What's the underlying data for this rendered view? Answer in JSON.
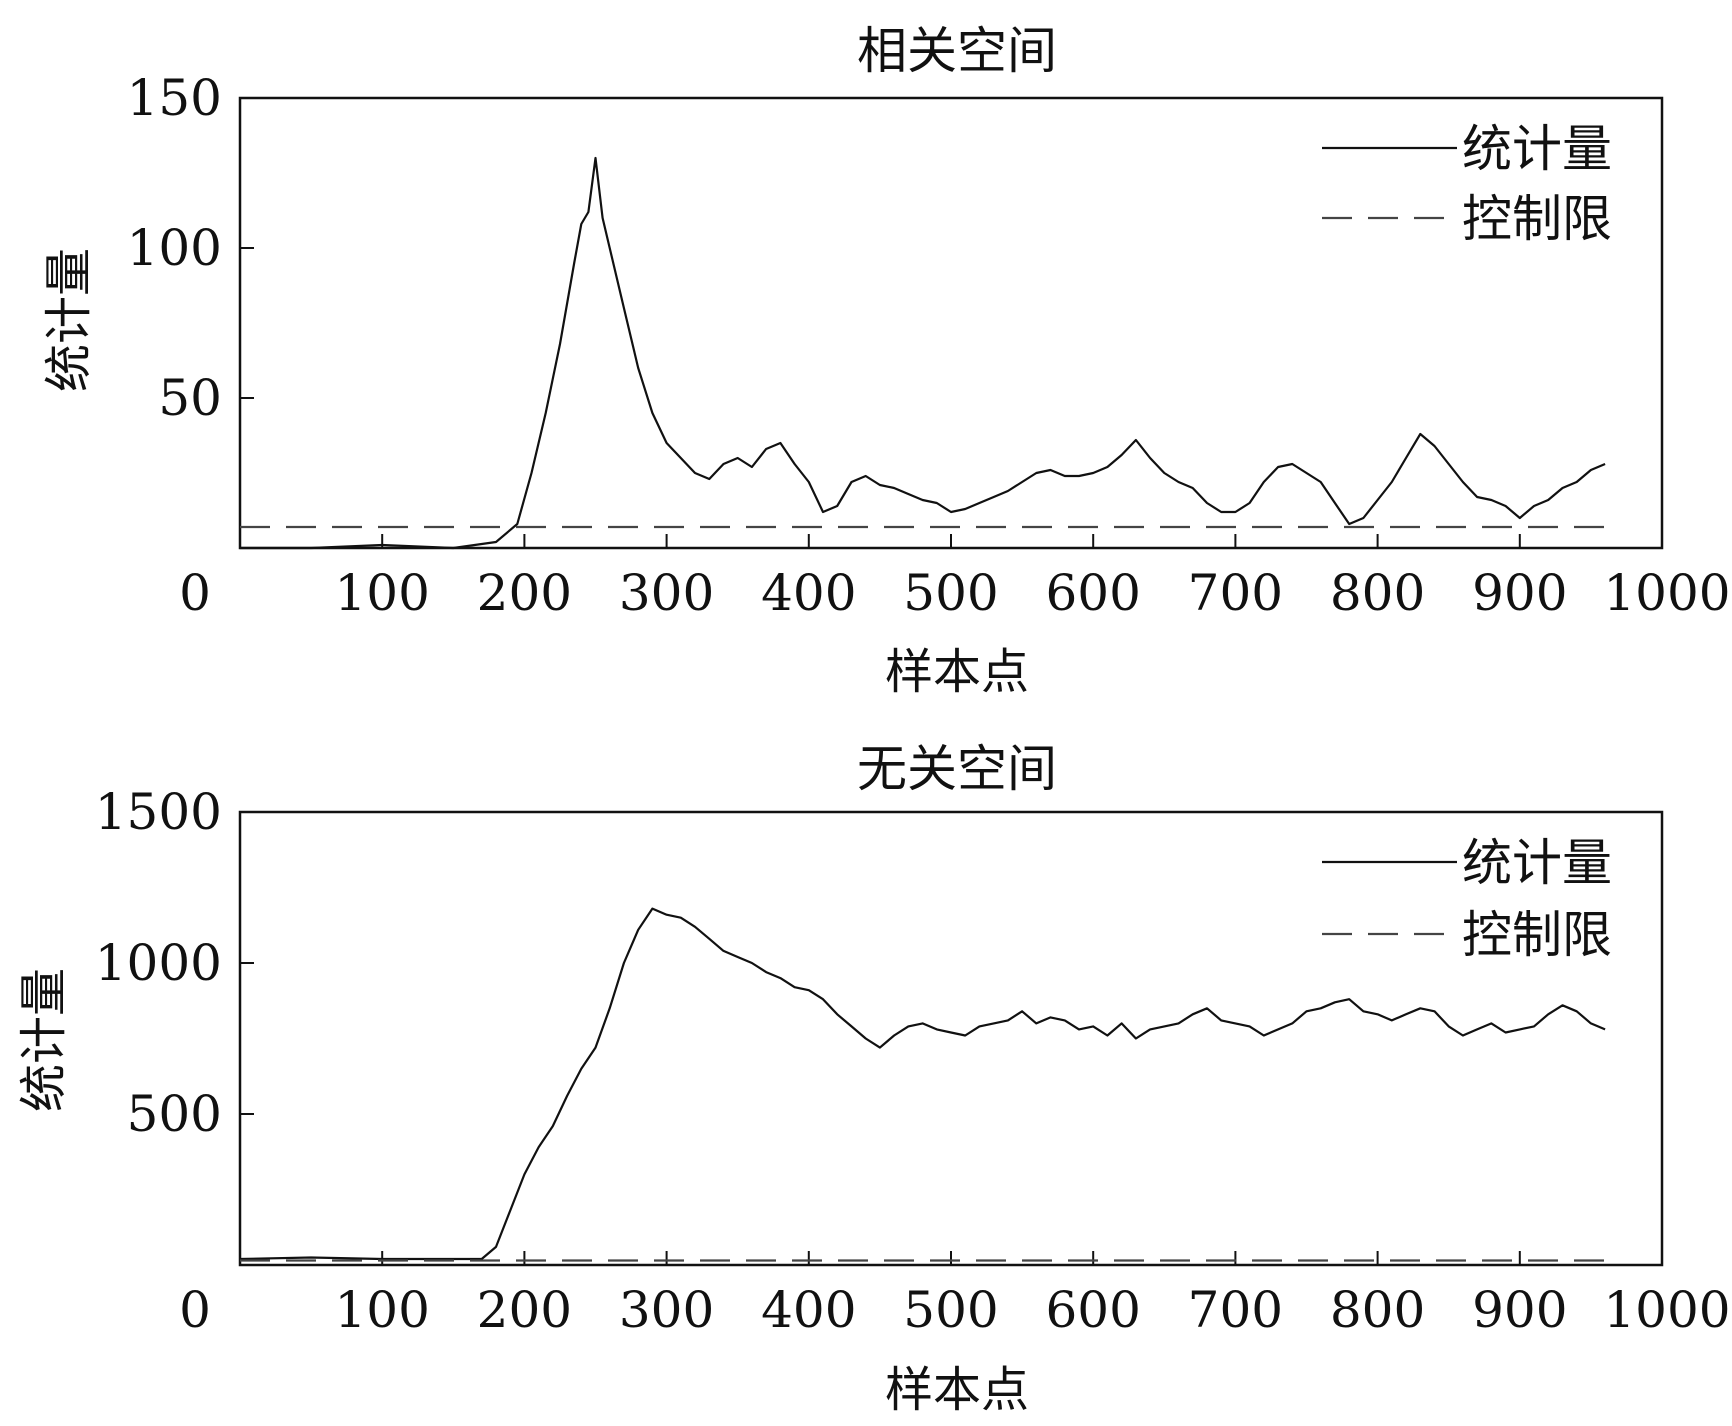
{
  "chart_data": [
    {
      "type": "line",
      "title": "相关空间",
      "xlabel": "样本点",
      "ylabel": "统计量",
      "xlim": [
        0,
        1000
      ],
      "ylim": [
        0,
        150
      ],
      "xticks": [
        "0",
        "100",
        "200",
        "300",
        "400",
        "500",
        "600",
        "700",
        "800",
        "900",
        "1000"
      ],
      "yticks": [
        "50",
        "100",
        "150"
      ],
      "ytick_values": [
        50,
        100,
        150
      ],
      "grid": false,
      "legend_position": "top-right",
      "series": [
        {
          "name": "统计量",
          "style": "solid",
          "x": [
            0,
            50,
            100,
            150,
            180,
            195,
            205,
            215,
            225,
            235,
            240,
            245,
            250,
            255,
            260,
            270,
            280,
            290,
            300,
            310,
            320,
            330,
            340,
            350,
            360,
            370,
            380,
            390,
            400,
            410,
            420,
            430,
            440,
            450,
            460,
            470,
            480,
            490,
            500,
            510,
            520,
            530,
            540,
            550,
            560,
            570,
            580,
            590,
            600,
            610,
            620,
            630,
            640,
            650,
            660,
            670,
            680,
            690,
            700,
            710,
            720,
            730,
            740,
            750,
            760,
            770,
            780,
            790,
            800,
            810,
            820,
            830,
            840,
            850,
            860,
            870,
            880,
            890,
            900,
            910,
            920,
            930,
            940,
            950,
            960
          ],
          "values": [
            0,
            0,
            1,
            0,
            2,
            8,
            25,
            45,
            68,
            95,
            108,
            112,
            130,
            110,
            100,
            80,
            60,
            45,
            35,
            30,
            25,
            23,
            28,
            30,
            27,
            33,
            35,
            28,
            22,
            12,
            14,
            22,
            24,
            21,
            20,
            18,
            16,
            15,
            12,
            13,
            15,
            17,
            19,
            22,
            25,
            26,
            24,
            24,
            25,
            27,
            31,
            36,
            30,
            25,
            22,
            20,
            15,
            12,
            12,
            15,
            22,
            27,
            28,
            25,
            22,
            15,
            8,
            10,
            16,
            22,
            30,
            38,
            34,
            28,
            22,
            17,
            16,
            14,
            10,
            14,
            16,
            20,
            22,
            26,
            28
          ]
        },
        {
          "name": "控制限",
          "style": "dashed",
          "x": [
            0,
            960
          ],
          "values": [
            7,
            7
          ]
        }
      ]
    },
    {
      "type": "line",
      "title": "无关空间",
      "xlabel": "样本点",
      "ylabel": "统计量",
      "xlim": [
        0,
        1000
      ],
      "ylim": [
        0,
        1500
      ],
      "xticks": [
        "0",
        "100",
        "200",
        "300",
        "400",
        "500",
        "600",
        "700",
        "800",
        "900",
        "1000"
      ],
      "yticks": [
        "500",
        "1000",
        "1500"
      ],
      "ytick_values": [
        500,
        1000,
        1500
      ],
      "grid": false,
      "legend_position": "top-right",
      "series": [
        {
          "name": "统计量",
          "style": "solid",
          "x": [
            0,
            50,
            100,
            150,
            170,
            180,
            190,
            200,
            210,
            220,
            230,
            240,
            250,
            260,
            270,
            280,
            290,
            300,
            310,
            320,
            330,
            340,
            350,
            360,
            370,
            380,
            390,
            400,
            410,
            420,
            430,
            440,
            450,
            460,
            470,
            480,
            490,
            500,
            510,
            520,
            530,
            540,
            550,
            560,
            570,
            580,
            590,
            600,
            610,
            620,
            630,
            640,
            650,
            660,
            670,
            680,
            690,
            700,
            710,
            720,
            730,
            740,
            750,
            760,
            770,
            780,
            790,
            800,
            810,
            820,
            830,
            840,
            850,
            860,
            870,
            880,
            890,
            900,
            910,
            920,
            930,
            940,
            950,
            960
          ],
          "values": [
            20,
            25,
            20,
            20,
            20,
            60,
            180,
            300,
            390,
            460,
            560,
            650,
            720,
            850,
            1000,
            1110,
            1180,
            1160,
            1150,
            1120,
            1080,
            1040,
            1020,
            1000,
            970,
            950,
            920,
            910,
            880,
            830,
            790,
            750,
            720,
            760,
            790,
            800,
            780,
            770,
            760,
            790,
            800,
            810,
            840,
            800,
            820,
            810,
            780,
            790,
            760,
            800,
            750,
            780,
            790,
            800,
            830,
            850,
            810,
            800,
            790,
            760,
            780,
            800,
            840,
            850,
            870,
            880,
            840,
            830,
            810,
            830,
            850,
            840,
            790,
            760,
            780,
            800,
            770,
            780,
            790,
            830,
            860,
            840,
            800,
            780
          ]
        },
        {
          "name": "控制限",
          "style": "dashed",
          "x": [
            0,
            960
          ],
          "values": [
            15,
            15
          ]
        }
      ]
    }
  ]
}
